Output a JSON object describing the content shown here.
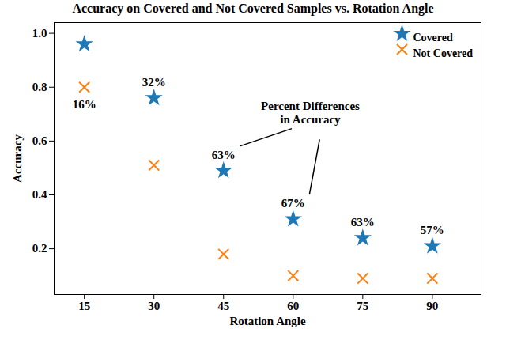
{
  "chart_data": {
    "type": "scatter",
    "title": "Accuracy on Covered and Not Covered Samples vs. Rotation Angle",
    "x_label": "Rotation Angle",
    "y_label": "Accuracy",
    "x": [
      15,
      30,
      45,
      60,
      75,
      90
    ],
    "series": [
      {
        "name": "Covered",
        "color": "#1f77b4",
        "marker": "star",
        "values": [
          0.96,
          0.76,
          0.49,
          0.31,
          0.24,
          0.21
        ]
      },
      {
        "name": "Not Covered",
        "color": "#ff7f0e",
        "marker": "x",
        "values": [
          0.8,
          0.51,
          0.18,
          0.1,
          0.09,
          0.09
        ]
      }
    ],
    "percent_differences": {
      "values": [
        16,
        32,
        63,
        67,
        63,
        57
      ],
      "value_labels": [
        "16%",
        "32%",
        "63%",
        "67%",
        "63%",
        "57%"
      ]
    },
    "annotations": [
      {
        "text": "Percent Differences\nin Accuracy",
        "points_to": [
          45,
          60
        ]
      }
    ],
    "xlim": [
      8.5,
      100.5
    ],
    "xticks": [
      15,
      30,
      45,
      60,
      75,
      90
    ],
    "ylim": [
      0.03,
      1.04
    ],
    "yticks": [
      0.2,
      0.4,
      0.6,
      0.8,
      {
        "value": 1,
        "label": "1.0"
      }
    ],
    "legend": "upper right",
    "grid": false
  }
}
